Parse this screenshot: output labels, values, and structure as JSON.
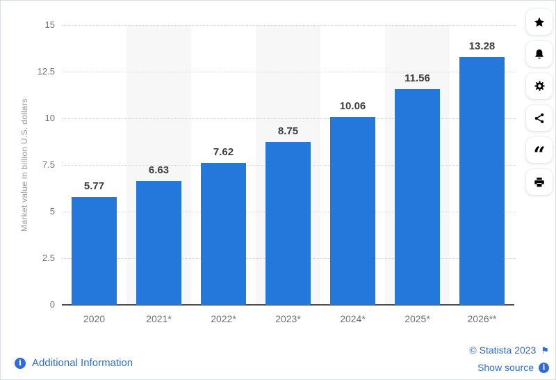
{
  "colors": {
    "bar": "#2478dc",
    "link": "#2f6bd9",
    "icon_navy": "#30506e",
    "stripe": "#f7f7f7"
  },
  "chart_data": {
    "type": "bar",
    "categories": [
      "2020",
      "2021*",
      "2022*",
      "2023*",
      "2024*",
      "2025*",
      "2026**"
    ],
    "values": [
      5.77,
      6.63,
      7.62,
      8.75,
      10.06,
      11.56,
      13.28
    ],
    "value_labels": [
      "5.77",
      "6.63",
      "7.62",
      "8.75",
      "10.06",
      "11.56",
      "13.28"
    ],
    "title": "",
    "xlabel": "",
    "ylabel": "Market value in billion U.S. dollars",
    "ylim": [
      0,
      15
    ],
    "yticks": [
      0,
      2.5,
      5,
      7.5,
      10,
      12.5,
      15
    ],
    "grid": "horizontal-dotted",
    "legend": "none",
    "striped_column_indexes": [
      1,
      3,
      5
    ]
  },
  "toolbar": {
    "buttons": [
      {
        "name": "favorite-button",
        "icon": "star-icon"
      },
      {
        "name": "alert-button",
        "icon": "bell-icon"
      },
      {
        "name": "settings-button",
        "icon": "gear-icon"
      },
      {
        "name": "share-button",
        "icon": "share-icon"
      },
      {
        "name": "cite-button",
        "icon": "quote-icon"
      },
      {
        "name": "print-button",
        "icon": "print-icon"
      }
    ]
  },
  "icons": {
    "quote_glyph": "“",
    "flag_glyph": "⚑",
    "info_glyph": "i"
  },
  "footer": {
    "additional_information": "Additional Information",
    "copyright": "© Statista 2023",
    "show_source": "Show source"
  }
}
